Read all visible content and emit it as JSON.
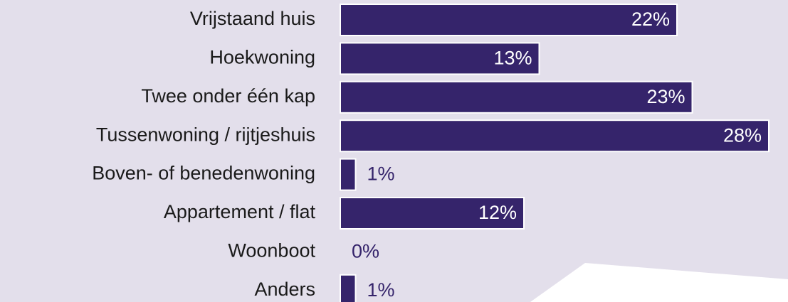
{
  "chart_data": {
    "type": "bar",
    "orientation": "horizontal",
    "categories": [
      "Vrijstaand huis",
      "Hoekwoning",
      "Twee onder één kap",
      "Tussenwoning / rijtjeshuis",
      "Boven- of benedenwoning",
      "Appartement / flat",
      "Woonboot",
      "Anders"
    ],
    "values": [
      22,
      13,
      23,
      28,
      1,
      12,
      0,
      1
    ],
    "value_labels": [
      "22%",
      "13%",
      "23%",
      "28%",
      "1%",
      "12%",
      "0%",
      "1%"
    ],
    "color": "#35246b"
  }
}
